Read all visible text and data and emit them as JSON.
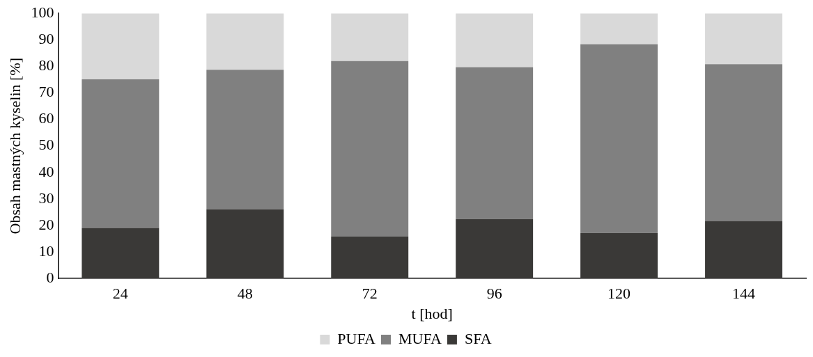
{
  "chart_data": {
    "type": "bar",
    "stacked": true,
    "xlabel": "t [hod]",
    "ylabel": "Obsah mastných kyselin [%]",
    "categories": [
      "24",
      "48",
      "72",
      "96",
      "120",
      "144"
    ],
    "series": [
      {
        "name": "SFA",
        "color": "#3a3937",
        "values": [
          19.1,
          26.1,
          15.8,
          22.4,
          17.2,
          21.7
        ]
      },
      {
        "name": "MUFA",
        "color": "#808080",
        "values": [
          56.0,
          52.6,
          66.2,
          57.3,
          71.2,
          59.1
        ]
      },
      {
        "name": "PUFA",
        "color": "#d9d9d9",
        "values": [
          24.9,
          21.3,
          18.0,
          20.3,
          11.6,
          19.2
        ]
      }
    ],
    "ylim": [
      0,
      100
    ],
    "yticks": [
      0,
      10,
      20,
      30,
      40,
      50,
      60,
      70,
      80,
      90,
      100
    ],
    "grid": false,
    "legend": "bottom"
  }
}
